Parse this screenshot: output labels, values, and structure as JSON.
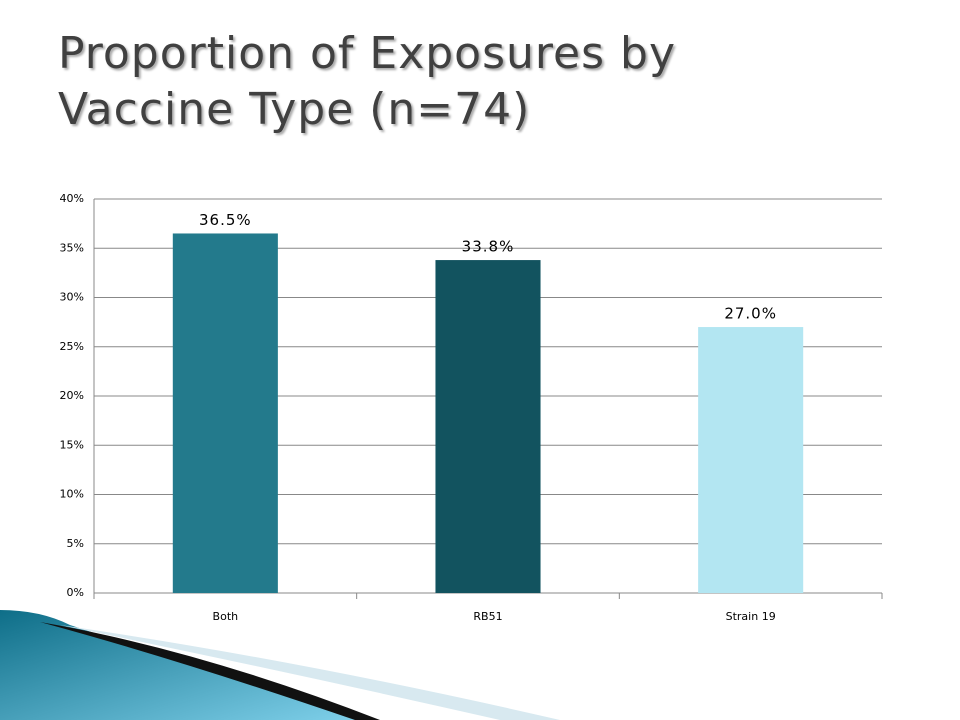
{
  "chart_data": {
    "type": "bar",
    "title": "Proportion of Exposures by Vaccine Type (n=74)",
    "categories": [
      "Both",
      "RB51",
      "Strain 19"
    ],
    "values": [
      36.5,
      33.8,
      27.0
    ],
    "value_labels": [
      "36.5%",
      "33.8%",
      "27.0%"
    ],
    "colors": [
      "#237a8c",
      "#12535f",
      "#b3e6f2"
    ],
    "ylim": [
      0,
      40
    ],
    "yticks": [
      {
        "value": 0,
        "label": "0%"
      },
      {
        "value": 5,
        "label": "5%"
      },
      {
        "value": 10,
        "label": "10%"
      },
      {
        "value": 15,
        "label": "15%"
      },
      {
        "value": 20,
        "label": "20%"
      },
      {
        "value": 25,
        "label": "25%"
      },
      {
        "value": 30,
        "label": "30%"
      },
      {
        "value": 35,
        "label": "35%"
      },
      {
        "value": 40,
        "label": "40%"
      }
    ],
    "grid": true
  }
}
